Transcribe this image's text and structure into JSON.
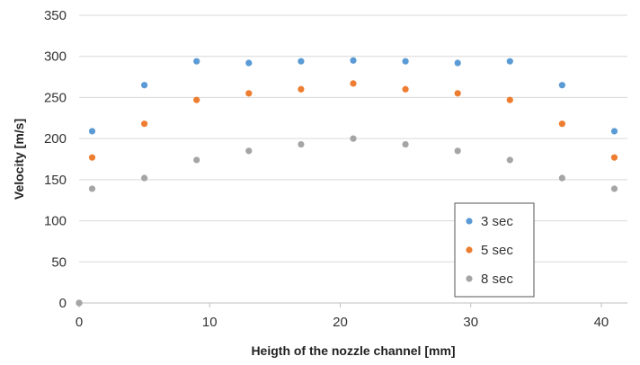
{
  "chart_data": {
    "type": "scatter",
    "xlabel": "Heigth of the nozzle channel [mm]",
    "ylabel": "Velocity [m/s]",
    "xlim": [
      0,
      42
    ],
    "ylim": [
      0,
      350
    ],
    "xticks": [
      0,
      10,
      20,
      30,
      40
    ],
    "yticks": [
      0,
      50,
      100,
      150,
      200,
      250,
      300,
      350
    ],
    "grid": "horizontal",
    "legend_position": "bottom-right",
    "series": [
      {
        "name": "3 sec",
        "color": "#5B9BD5",
        "points": [
          [
            0,
            0
          ],
          [
            1,
            209
          ],
          [
            5,
            265
          ],
          [
            9,
            294
          ],
          [
            13,
            292
          ],
          [
            17,
            294
          ],
          [
            21,
            295
          ],
          [
            25,
            294
          ],
          [
            29,
            292
          ],
          [
            33,
            294
          ],
          [
            37,
            265
          ],
          [
            41,
            209
          ]
        ]
      },
      {
        "name": "5 sec",
        "color": "#ED7D31",
        "points": [
          [
            0,
            0
          ],
          [
            1,
            177
          ],
          [
            5,
            218
          ],
          [
            9,
            247
          ],
          [
            13,
            255
          ],
          [
            17,
            260
          ],
          [
            21,
            267
          ],
          [
            25,
            260
          ],
          [
            29,
            255
          ],
          [
            33,
            247
          ],
          [
            37,
            218
          ],
          [
            41,
            177
          ]
        ]
      },
      {
        "name": "8 sec",
        "color": "#A5A5A5",
        "points": [
          [
            0,
            0
          ],
          [
            1,
            139
          ],
          [
            5,
            152
          ],
          [
            9,
            174
          ],
          [
            13,
            185
          ],
          [
            17,
            193
          ],
          [
            21,
            200
          ],
          [
            25,
            193
          ],
          [
            29,
            185
          ],
          [
            33,
            174
          ],
          [
            37,
            152
          ],
          [
            41,
            139
          ]
        ]
      }
    ]
  }
}
